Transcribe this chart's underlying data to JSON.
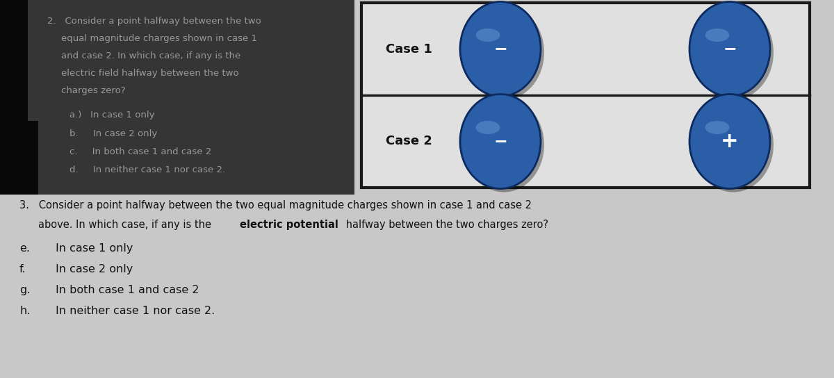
{
  "bg_color": "#c8c8c8",
  "dark_overlay_color": "#1a1a1a",
  "dark_overlay_alpha": 0.82,
  "dark_text_color": "#999999",
  "case_box_bg": "#e0e0e0",
  "case_box_edge": "#1a1a1a",
  "case1_label": "Case 1",
  "case2_label": "Case 2",
  "case1_charge1_sign": "−",
  "case1_charge2_sign": "−",
  "case2_charge1_sign": "−",
  "case2_charge2_sign": "+",
  "circle_color": "#2a5fa8",
  "circle_edge_color": "#0d2a5e",
  "sign_color": "#ffffff",
  "q2_lines": [
    "2.   Consider a point halfway between the two",
    "equal magnitude charges shown in case 1",
    "and case 2. In which case, if any is the",
    "electric field halfway between the two",
    "charges zero?"
  ],
  "q2_options": [
    "a.)   In case 1 only",
    "b.     In case 2 only",
    "c.     In both case 1 and case 2",
    "d.     In neither case 1 nor case 2."
  ],
  "q3_line1": "3.   Consider a point halfway between the two equal magnitude charges shown in case 1 and case 2",
  "q3_line2_pre": "above. In which case, if any is the ",
  "q3_line2_bold": "electric potential",
  "q3_line2_post": " halfway between the two charges zero?",
  "q3_options": [
    {
      "label": "e.",
      "text": "In case 1 only"
    },
    {
      "label": "f.",
      "text": "In case 2 only"
    },
    {
      "label": "g.",
      "text": "In both case 1 and case 2"
    },
    {
      "label": "h.",
      "text": "In neither case 1 nor case 2."
    }
  ],
  "spine_color": "#080808",
  "highlight_color": "#6a9fd8"
}
